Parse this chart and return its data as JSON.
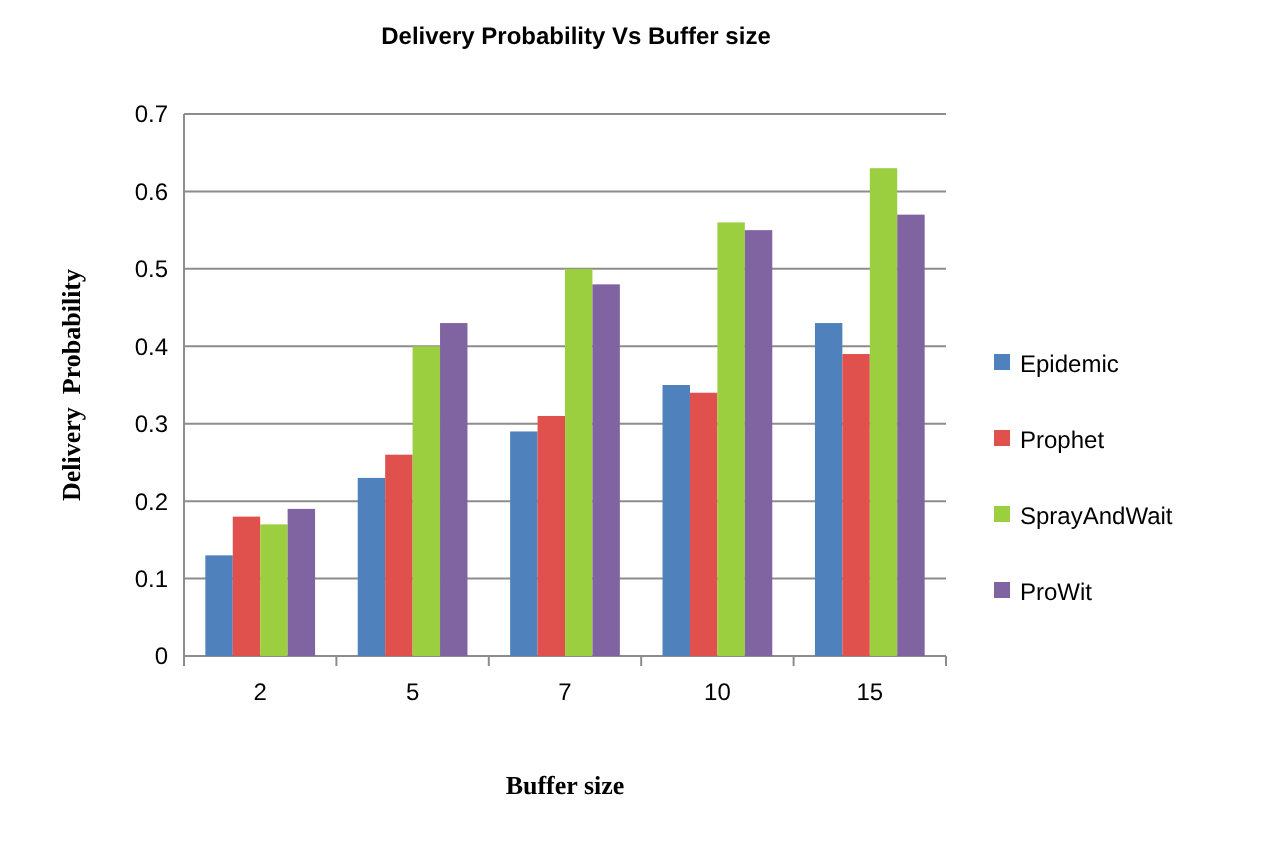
{
  "chart_data": {
    "type": "bar",
    "title": "Delivery Probability Vs Buffer size",
    "xlabel": "Buffer size",
    "ylabel": "Delivery  Probability",
    "categories": [
      "2",
      "5",
      "7",
      "10",
      "15"
    ],
    "series": [
      {
        "name": "Epidemic",
        "color": "#4f81bd",
        "values": [
          0.13,
          0.23,
          0.29,
          0.35,
          0.43
        ]
      },
      {
        "name": "Prophet",
        "color": "#e0504d",
        "values": [
          0.18,
          0.26,
          0.31,
          0.34,
          0.39
        ]
      },
      {
        "name": "SprayAndWait",
        "color": "#9bcf3f",
        "values": [
          0.17,
          0.4,
          0.5,
          0.56,
          0.63
        ]
      },
      {
        "name": "ProWit",
        "color": "#8064a2",
        "values": [
          0.19,
          0.43,
          0.48,
          0.55,
          0.57
        ]
      }
    ],
    "ylim": [
      0,
      0.7
    ],
    "yticks": [
      0,
      0.1,
      0.2,
      0.3,
      0.4,
      0.5,
      0.6,
      0.7
    ],
    "grid": "y",
    "legend": "right"
  }
}
